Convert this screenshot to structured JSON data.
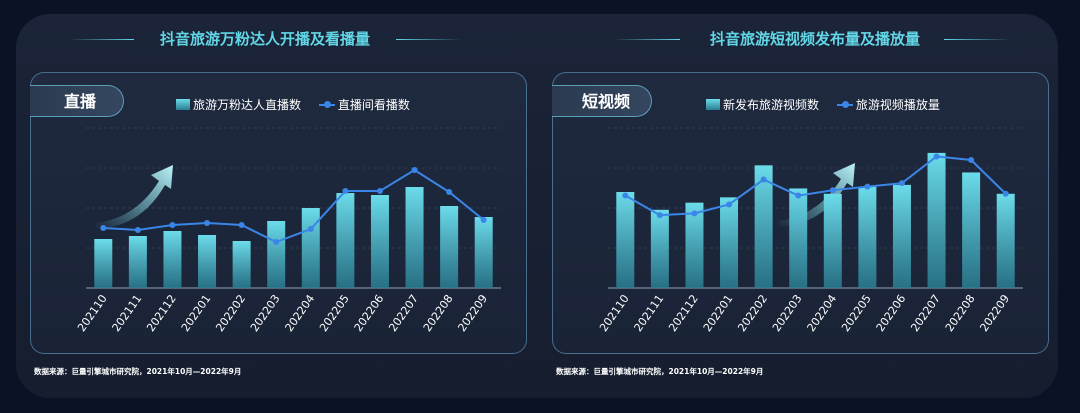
{
  "page": {
    "left_title": "抖音旅游万粉达人开播及看播量",
    "right_title": "抖音旅游短视频发布量及播放量",
    "source_left": "数据来源：巨量引擎城市研究院，2021年10月—2022年9月",
    "source_right": "数据来源：巨量引擎城市研究院，2021年10月—2022年9月"
  },
  "colors": {
    "accent": "#62d6e6",
    "bar_top": "#6cdcea",
    "bar_bottom": "#2a7d92",
    "line": "#3a86e8"
  },
  "chart_data": [
    {
      "type": "bar+line",
      "tag": "直播",
      "categories": [
        "202110",
        "202111",
        "202112",
        "202201",
        "202202",
        "202203",
        "202204",
        "202205",
        "202206",
        "202207",
        "202208",
        "202209"
      ],
      "series": [
        {
          "name": "旅游万粉达人直播数",
          "type": "bar",
          "values": [
            49,
            52,
            57,
            53,
            47,
            67,
            80,
            95,
            93,
            101,
            82,
            71
          ]
        },
        {
          "name": "直播间看播数",
          "type": "line",
          "values": [
            60,
            58,
            63,
            65,
            63,
            46,
            59,
            97,
            97,
            118,
            96,
            68
          ]
        }
      ],
      "ylim": [
        0,
        160
      ],
      "grid": true,
      "legend_position": "top"
    },
    {
      "type": "bar+line",
      "tag": "短视频",
      "categories": [
        "202110",
        "202111",
        "202112",
        "202201",
        "202202",
        "202203",
        "202204",
        "202205",
        "202206",
        "202207",
        "202208",
        "202209"
      ],
      "series": [
        {
          "name": "新发布旅游视频数",
          "type": "bar",
          "values": [
            54,
            44,
            48,
            51,
            69,
            56,
            53,
            57,
            58,
            76,
            65,
            53
          ]
        },
        {
          "name": "旅游视频播放量",
          "type": "line",
          "values": [
            52,
            41,
            42,
            47,
            61,
            52,
            55,
            57,
            59,
            74,
            72,
            53
          ]
        }
      ],
      "ylim": [
        0,
        90
      ],
      "grid": true,
      "legend_position": "top"
    }
  ]
}
